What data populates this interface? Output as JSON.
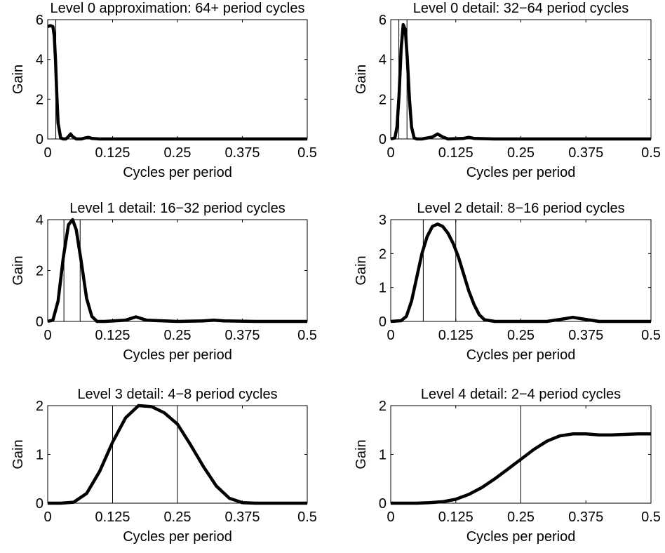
{
  "chart_data": [
    {
      "type": "line",
      "title": "Level 0 approximation: 64+ period cycles",
      "xlabel": "Cycles per period",
      "ylabel": "Gain",
      "color": "#000000",
      "x": [
        0,
        0.005,
        0.01,
        0.0125,
        0.015,
        0.0175,
        0.02,
        0.025,
        0.03,
        0.035,
        0.04,
        0.044,
        0.048,
        0.055,
        0.065,
        0.072,
        0.078,
        0.085,
        0.1,
        0.2,
        0.3,
        0.4,
        0.5
      ],
      "values": [
        5.65,
        5.7,
        5.65,
        5.2,
        4.0,
        2.2,
        0.8,
        0.05,
        0,
        0,
        0.12,
        0.25,
        0.12,
        0,
        0,
        0.05,
        0.08,
        0.03,
        0,
        0,
        0,
        0,
        0
      ],
      "vlines": [
        0.015625
      ],
      "xlim": [
        0,
        0.5
      ],
      "xticks": [
        0,
        0.125,
        0.25,
        0.375,
        0.5
      ],
      "ylim": [
        0,
        6
      ],
      "yticks": [
        0,
        2,
        4,
        6
      ]
    },
    {
      "type": "line",
      "title": "Level 0 detail: 32−64 period cycles",
      "xlabel": "Cycles per period",
      "ylabel": "Gain",
      "color": "#000000",
      "x": [
        0,
        0.008,
        0.012,
        0.016,
        0.02,
        0.024,
        0.028,
        0.032,
        0.036,
        0.04,
        0.045,
        0.05,
        0.06,
        0.08,
        0.09,
        0.1,
        0.11,
        0.14,
        0.15,
        0.16,
        0.2,
        0.3,
        0.4,
        0.5
      ],
      "values": [
        0,
        0.05,
        0.6,
        2.2,
        4.5,
        5.75,
        5.5,
        4.0,
        2.0,
        0.6,
        0.05,
        0,
        0,
        0.1,
        0.25,
        0.1,
        0,
        0.03,
        0.08,
        0.03,
        0,
        0,
        0,
        0
      ],
      "vlines": [
        0.015625,
        0.03125
      ],
      "xlim": [
        0,
        0.5
      ],
      "xticks": [
        0,
        0.125,
        0.25,
        0.375,
        0.5
      ],
      "ylim": [
        0,
        6
      ],
      "yticks": [
        0,
        2,
        4,
        6
      ]
    },
    {
      "type": "line",
      "title": "Level 1 detail: 16−32 period cycles",
      "xlabel": "Cycles per period",
      "ylabel": "Gain",
      "color": "#000000",
      "x": [
        0,
        0.01,
        0.02,
        0.03,
        0.04,
        0.048,
        0.055,
        0.065,
        0.075,
        0.085,
        0.095,
        0.11,
        0.15,
        0.17,
        0.19,
        0.25,
        0.3,
        0.32,
        0.34,
        0.4,
        0.5
      ],
      "values": [
        0,
        0.05,
        0.8,
        2.5,
        3.8,
        4.0,
        3.6,
        2.3,
        0.9,
        0.2,
        0,
        0,
        0.05,
        0.18,
        0.05,
        0,
        0.02,
        0.05,
        0.02,
        0,
        0
      ],
      "vlines": [
        0.03125,
        0.0625
      ],
      "xlim": [
        0,
        0.5
      ],
      "xticks": [
        0,
        0.125,
        0.25,
        0.375,
        0.5
      ],
      "ylim": [
        0,
        4
      ],
      "yticks": [
        0,
        2,
        4
      ]
    },
    {
      "type": "line",
      "title": "Level 2 detail: 8−16 period cycles",
      "xlabel": "Cycles per period",
      "ylabel": "Gain",
      "color": "#000000",
      "x": [
        0,
        0.02,
        0.03,
        0.04,
        0.05,
        0.06,
        0.07,
        0.08,
        0.09,
        0.1,
        0.11,
        0.12,
        0.13,
        0.14,
        0.15,
        0.16,
        0.17,
        0.18,
        0.2,
        0.3,
        0.33,
        0.35,
        0.37,
        0.4,
        0.5
      ],
      "values": [
        0,
        0.02,
        0.15,
        0.6,
        1.3,
        2.0,
        2.5,
        2.8,
        2.87,
        2.8,
        2.6,
        2.3,
        1.9,
        1.4,
        0.9,
        0.5,
        0.2,
        0.05,
        0,
        0,
        0.07,
        0.12,
        0.07,
        0,
        0
      ],
      "vlines": [
        0.0625,
        0.125
      ],
      "xlim": [
        0,
        0.5
      ],
      "xticks": [
        0,
        0.125,
        0.25,
        0.375,
        0.5
      ],
      "ylim": [
        0,
        3
      ],
      "yticks": [
        0,
        1,
        2,
        3
      ]
    },
    {
      "type": "line",
      "title": "Level 3 detail: 4−8 period cycles",
      "xlabel": "Cycles per period",
      "ylabel": "Gain",
      "color": "#000000",
      "x": [
        0,
        0.025,
        0.05,
        0.075,
        0.1,
        0.125,
        0.15,
        0.175,
        0.2,
        0.225,
        0.25,
        0.275,
        0.3,
        0.325,
        0.35,
        0.375,
        0.4,
        0.425,
        0.45,
        0.475,
        0.5
      ],
      "values": [
        0,
        0,
        0.02,
        0.2,
        0.65,
        1.25,
        1.75,
        2.0,
        1.98,
        1.85,
        1.62,
        1.2,
        0.75,
        0.35,
        0.1,
        0.01,
        0,
        0,
        0,
        0,
        0
      ],
      "vlines": [
        0.125,
        0.25
      ],
      "xlim": [
        0,
        0.5
      ],
      "xticks": [
        0,
        0.125,
        0.25,
        0.375,
        0.5
      ],
      "ylim": [
        0,
        2
      ],
      "yticks": [
        0,
        1,
        2
      ]
    },
    {
      "type": "line",
      "title": "Level 4 detail: 2−4 period cycles",
      "xlabel": "Cycles per period",
      "ylabel": "Gain",
      "color": "#000000",
      "x": [
        0,
        0.025,
        0.05,
        0.075,
        0.1,
        0.125,
        0.15,
        0.175,
        0.2,
        0.225,
        0.25,
        0.275,
        0.3,
        0.325,
        0.35,
        0.375,
        0.4,
        0.425,
        0.45,
        0.475,
        0.5
      ],
      "values": [
        0,
        0,
        0,
        0.01,
        0.03,
        0.08,
        0.18,
        0.32,
        0.5,
        0.7,
        0.9,
        1.1,
        1.27,
        1.38,
        1.42,
        1.42,
        1.4,
        1.4,
        1.41,
        1.42,
        1.42
      ],
      "vlines": [
        0.25
      ],
      "xlim": [
        0,
        0.5
      ],
      "xticks": [
        0,
        0.125,
        0.25,
        0.375,
        0.5
      ],
      "ylim": [
        0,
        2
      ],
      "yticks": [
        0,
        1,
        2
      ]
    }
  ]
}
